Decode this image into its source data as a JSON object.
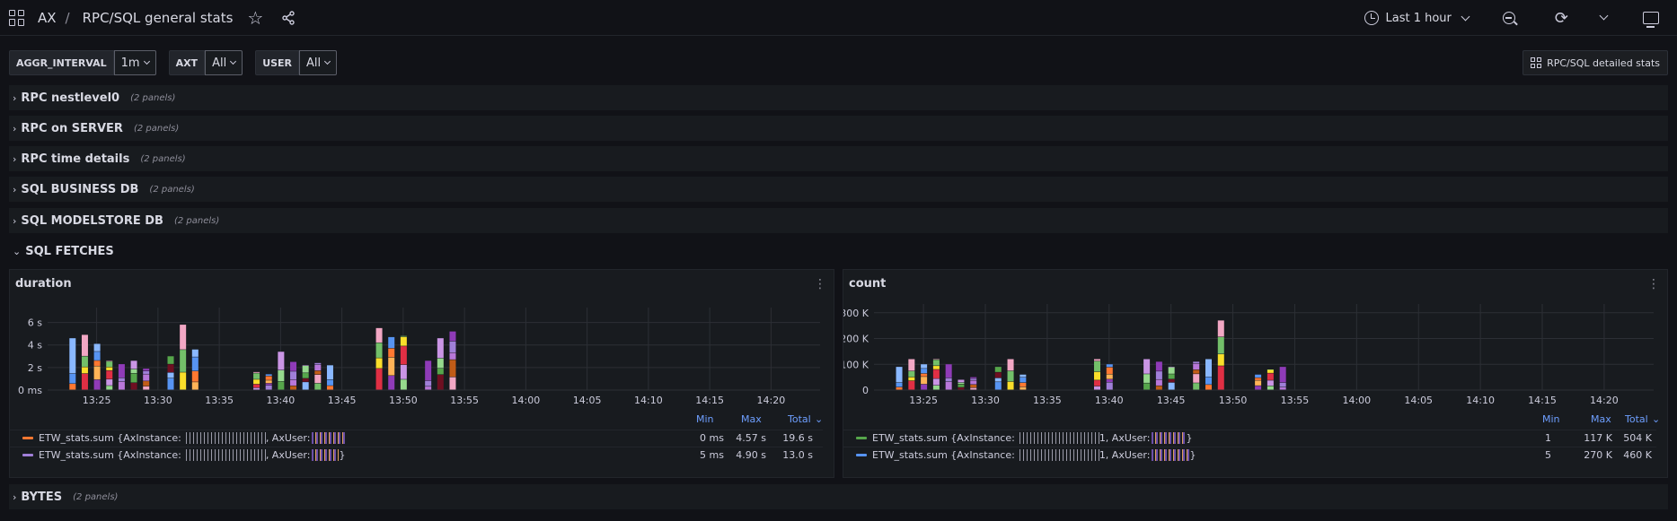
{
  "header": {
    "app": "AX",
    "separator": "/",
    "dashboard_title": "RPC/SQL general stats",
    "time_range": "Last 1 hour"
  },
  "variables": [
    {
      "label": "AGGR_INTERVAL",
      "value": "1m"
    },
    {
      "label": "AXT",
      "value": "All"
    },
    {
      "label": "USER",
      "value": "All"
    }
  ],
  "link_button": "RPC/SQL detailed stats",
  "rows": [
    {
      "title": "RPC nestlevel0",
      "count": "(2 panels)",
      "collapsed": true
    },
    {
      "title": "RPC on SERVER",
      "count": "(2 panels)",
      "collapsed": true
    },
    {
      "title": "RPC time details",
      "count": "(2 panels)",
      "collapsed": true
    },
    {
      "title": "SQL BUSINESS DB",
      "count": "(2 panels)",
      "collapsed": true
    },
    {
      "title": "SQL MODELSTORE DB",
      "count": "(2 panels)",
      "collapsed": true
    },
    {
      "title": "SQL FETCHES",
      "collapsed": false
    },
    {
      "title": "BYTES",
      "count": "(2 panels)",
      "collapsed": true
    }
  ],
  "panels": [
    {
      "title": "duration",
      "legend_headers": [
        "Min",
        "Max",
        "Total"
      ],
      "legend": [
        {
          "name": "ETW_stats.sum {AxInstance: ",
          "mid": ", AxUser: ",
          "end": "",
          "color": "#ff7831",
          "min": "0 ms",
          "max": "4.57 s",
          "total": "19.6 s"
        },
        {
          "name": "ETW_stats.sum {AxInstance: ",
          "mid": ", AxUser: ",
          "end": "}",
          "color": "#a07fd8",
          "min": "5 ms",
          "max": "4.90 s",
          "total": "13.0 s"
        }
      ]
    },
    {
      "title": "count",
      "legend_headers": [
        "Min",
        "Max",
        "Total"
      ],
      "legend": [
        {
          "name": "ETW_stats.sum {AxInstance: ",
          "mid": "1, AxUser: ",
          "end": "}",
          "color": "#56a64b",
          "min": "1",
          "max": "117 K",
          "total": "504 K"
        },
        {
          "name": "ETW_stats.sum {AxInstance: ",
          "mid": "1, AxUser: ",
          "end": "}",
          "color": "#5794f2",
          "min": "5",
          "max": "270 K",
          "total": "460 K"
        }
      ]
    }
  ],
  "chart_data": [
    {
      "type": "bar",
      "title": "duration",
      "stacked": true,
      "x_ticks": [
        "13:25",
        "13:30",
        "13:35",
        "13:40",
        "13:45",
        "13:50",
        "13:55",
        "14:00",
        "14:05",
        "14:10",
        "14:15",
        "14:20"
      ],
      "y_ticks": [
        "0 ms",
        "2 s",
        "4 s",
        "6 s"
      ],
      "ylim": [
        0,
        7
      ],
      "ylim_unit": "s",
      "bars_totals_s": [
        {
          "t": "13:23",
          "v": 4.6
        },
        {
          "t": "13:24",
          "v": 4.9
        },
        {
          "t": "13:25",
          "v": 4.1
        },
        {
          "t": "13:26",
          "v": 2.6
        },
        {
          "t": "13:27",
          "v": 2.3
        },
        {
          "t": "13:28",
          "v": 2.6
        },
        {
          "t": "13:29",
          "v": 1.9
        },
        {
          "t": "13:31",
          "v": 3.0
        },
        {
          "t": "13:32",
          "v": 5.8
        },
        {
          "t": "13:33",
          "v": 3.6
        },
        {
          "t": "13:38",
          "v": 1.6
        },
        {
          "t": "13:39",
          "v": 1.4
        },
        {
          "t": "13:40",
          "v": 3.4
        },
        {
          "t": "13:41",
          "v": 2.5
        },
        {
          "t": "13:42",
          "v": 2.2
        },
        {
          "t": "13:43",
          "v": 2.4
        },
        {
          "t": "13:44",
          "v": 2.2
        },
        {
          "t": "13:48",
          "v": 5.5
        },
        {
          "t": "13:49",
          "v": 4.7
        },
        {
          "t": "13:50",
          "v": 4.8
        },
        {
          "t": "13:52",
          "v": 2.6
        },
        {
          "t": "13:53",
          "v": 4.6
        },
        {
          "t": "13:54",
          "v": 5.2
        }
      ]
    },
    {
      "type": "bar",
      "title": "count",
      "stacked": true,
      "x_ticks": [
        "13:25",
        "13:30",
        "13:35",
        "13:40",
        "13:45",
        "13:50",
        "13:55",
        "14:00",
        "14:05",
        "14:10",
        "14:15",
        "14:20"
      ],
      "y_ticks": [
        "0",
        "100 K",
        "200 K",
        "300 K"
      ],
      "ylim": [
        0,
        320
      ],
      "ylim_unit": "K",
      "bars_totals_k": [
        {
          "t": "13:23",
          "v": 90
        },
        {
          "t": "13:24",
          "v": 120
        },
        {
          "t": "13:25",
          "v": 100
        },
        {
          "t": "13:26",
          "v": 120
        },
        {
          "t": "13:27",
          "v": 100
        },
        {
          "t": "13:28",
          "v": 40
        },
        {
          "t": "13:29",
          "v": 50
        },
        {
          "t": "13:31",
          "v": 90
        },
        {
          "t": "13:32",
          "v": 120
        },
        {
          "t": "13:33",
          "v": 60
        },
        {
          "t": "13:39",
          "v": 120
        },
        {
          "t": "13:40",
          "v": 100
        },
        {
          "t": "13:43",
          "v": 120
        },
        {
          "t": "13:44",
          "v": 110
        },
        {
          "t": "13:45",
          "v": 90
        },
        {
          "t": "13:47",
          "v": 110
        },
        {
          "t": "13:48",
          "v": 120
        },
        {
          "t": "13:49",
          "v": 270
        },
        {
          "t": "13:52",
          "v": 60
        },
        {
          "t": "13:53",
          "v": 80
        },
        {
          "t": "13:54",
          "v": 90
        }
      ]
    }
  ]
}
